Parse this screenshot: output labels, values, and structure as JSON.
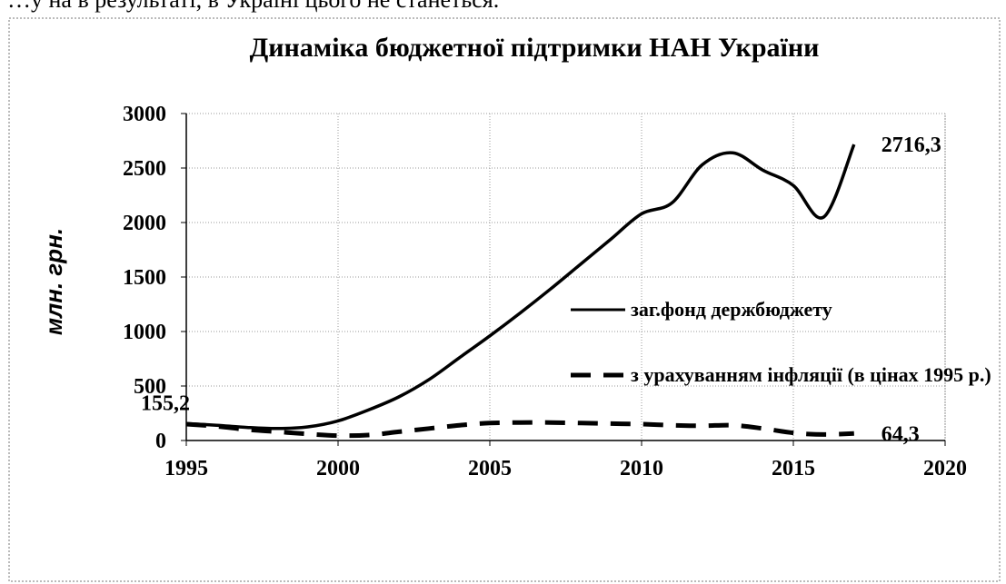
{
  "header_text": "…у на в результаті, в Україні цього не станеться.",
  "chart_data": {
    "type": "line",
    "title": "Динаміка бюджетної підтримки НАН України",
    "y_label": "млн. грн.",
    "xlim": [
      1995,
      2020
    ],
    "xticks": [
      1995,
      2000,
      2005,
      2010,
      2015,
      2020
    ],
    "ylim": [
      0,
      3000
    ],
    "yticks": [
      0,
      500,
      1000,
      1500,
      2000,
      2500,
      3000
    ],
    "grid": true,
    "legend": "right",
    "x": [
      1995,
      1996,
      1997,
      1998,
      1999,
      2000,
      2001,
      2002,
      2003,
      2004,
      2005,
      2006,
      2007,
      2008,
      2009,
      2010,
      2011,
      2012,
      2013,
      2014,
      2015,
      2016,
      2017
    ],
    "series": [
      {
        "name": "заг.фонд держбюджету",
        "color": "#000000",
        "dash": "solid",
        "values": [
          155.2,
          140,
          120,
          110,
          125,
          180,
          280,
          400,
          560,
          760,
          960,
          1170,
          1390,
          1620,
          1850,
          2080,
          2180,
          2530,
          2640,
          2480,
          2340,
          2050,
          2716.3
        ],
        "value_labels": [
          "155,2",
          null,
          null,
          null,
          null,
          null,
          null,
          null,
          null,
          null,
          null,
          null,
          null,
          null,
          null,
          null,
          null,
          null,
          null,
          null,
          null,
          null,
          "2716,3"
        ]
      },
      {
        "name": "з урахуванням інфляції (в цінах 1995 р.)",
        "color": "#000000",
        "dash": "dashed",
        "values": [
          150,
          130,
          100,
          80,
          60,
          45,
          50,
          80,
          110,
          140,
          160,
          165,
          165,
          160,
          155,
          150,
          140,
          135,
          140,
          110,
          70,
          55,
          64.3
        ],
        "value_labels": [
          null,
          null,
          null,
          null,
          null,
          null,
          null,
          null,
          null,
          null,
          null,
          null,
          null,
          null,
          null,
          null,
          null,
          null,
          null,
          null,
          null,
          null,
          "64,3"
        ]
      }
    ]
  }
}
